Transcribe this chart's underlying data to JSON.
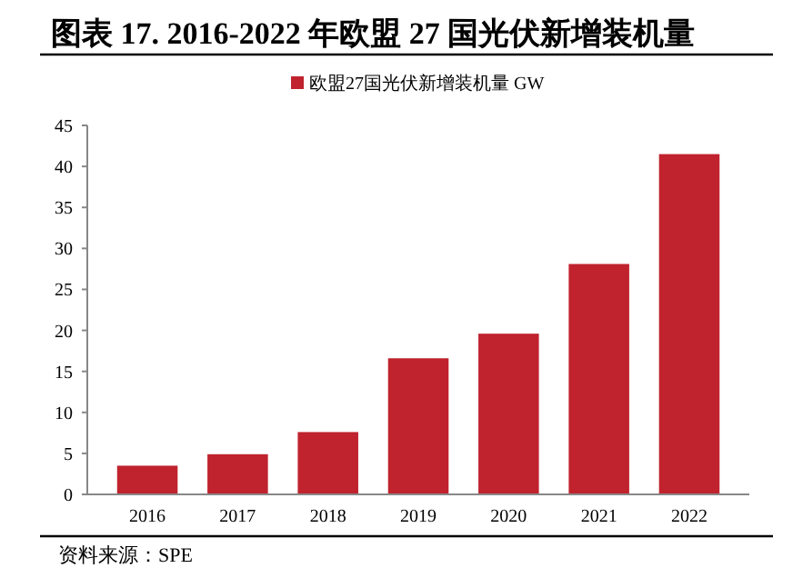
{
  "chart_data": {
    "type": "bar",
    "title": "图表 17. 2016-2022 年欧盟 27 国光伏新增装机量",
    "categories": [
      "2016",
      "2017",
      "2018",
      "2019",
      "2020",
      "2021",
      "2022"
    ],
    "series": [
      {
        "name": "欧盟27国光伏新增装机量 GW",
        "color": "#c0232e",
        "values": [
          3.5,
          4.9,
          7.6,
          16.6,
          19.6,
          28.1,
          41.5
        ]
      }
    ],
    "ylim": [
      0,
      45
    ],
    "yticks": [
      0,
      5,
      10,
      15,
      20,
      25,
      30,
      35,
      40,
      45
    ],
    "grid": false,
    "legend": "top",
    "annotations": [
      "资料来源：SPE"
    ]
  }
}
